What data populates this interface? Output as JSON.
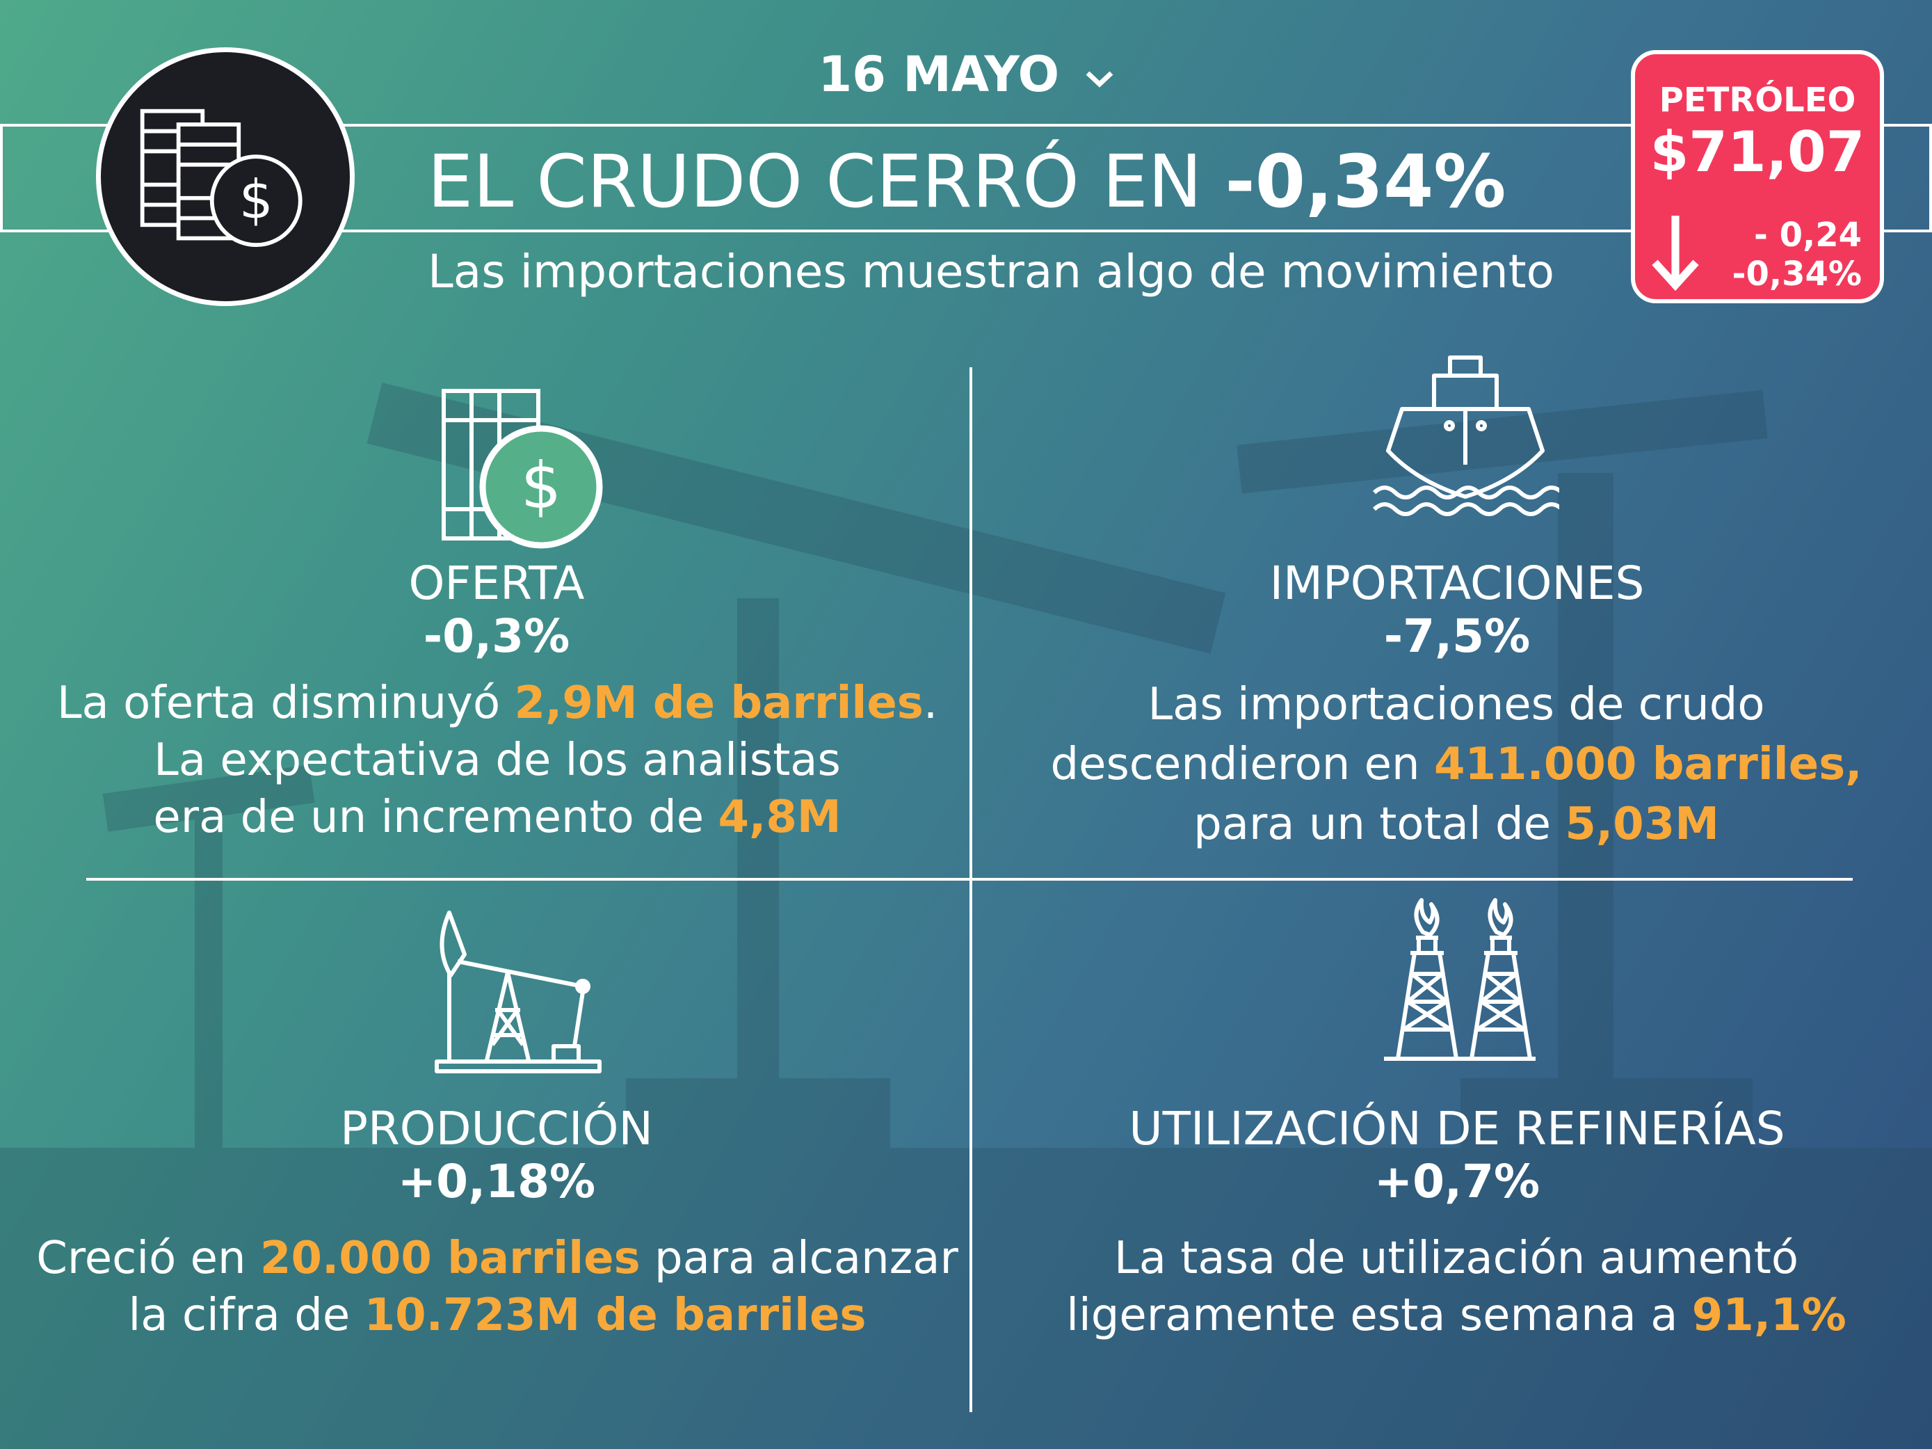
{
  "header": {
    "date": "16 MAYO",
    "headline_prefix": "EL CRUDO CERRÓ EN",
    "headline_value": "-0,34%",
    "subtitle": "Las importaciones muestran algo de movimiento",
    "emblem_icon": "oil-barrels-dollar-icon",
    "date_chevron_icon": "chevron-down-icon"
  },
  "price_card": {
    "label": "PETRÓLEO",
    "price": "$71,07",
    "change_abs": "- 0,24",
    "change_pct": "-0,34%",
    "trend_icon": "arrow-down-icon",
    "color": "#f2395c"
  },
  "sections": {
    "oferta": {
      "icon": "oil-barrel-dollar-icon",
      "title": "OFERTA",
      "value": "-0,3%",
      "l1a": "La oferta disminuyó ",
      "l1b": "2,9M de barriles",
      "l1c": ".",
      "l2": "La expectativa de los analistas",
      "l3a": "era de un incremento de ",
      "l3b": "4,8M"
    },
    "importaciones": {
      "icon": "cargo-ship-icon",
      "title": "IMPORTACIONES",
      "value": "-7,5%",
      "l1": "Las importaciones de crudo",
      "l2a": "descendieron en ",
      "l2b": "411.000 barriles,",
      "l3a": "para un total de ",
      "l3b": "5,03M"
    },
    "produccion": {
      "icon": "oil-pump-jack-icon",
      "title": "PRODUCCIÓN",
      "value": "+0,18%",
      "l1a": "Creció en ",
      "l1b": "20.000 barriles",
      "l1c": " para alcanzar",
      "l2a": "la cifra de ",
      "l2b": "10.723M de barriles"
    },
    "refinerias": {
      "icon": "refinery-flare-towers-icon",
      "title": "UTILIZACIÓN DE REFINERÍAS",
      "value": "+0,7%",
      "l1": "La tasa de utilización aumentó",
      "l2a": "ligeramente esta semana a ",
      "l2b": "91,1%"
    }
  },
  "colors": {
    "highlight": "#f8a93a",
    "accent_green": "#55b08a",
    "price_card": "#f2395c",
    "emblem_fill": "#1c1d22"
  }
}
